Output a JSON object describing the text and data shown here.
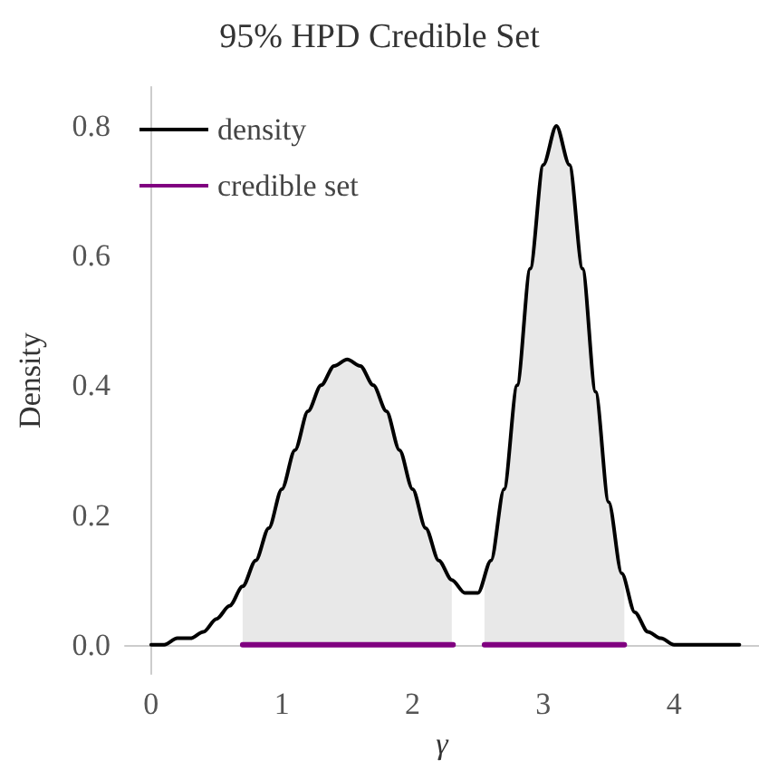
{
  "chart_data": {
    "type": "line",
    "title": "95% HPD Credible Set",
    "xlabel": "γ",
    "ylabel": "Density",
    "xlim": [
      -0.2,
      4.65
    ],
    "ylim": [
      -0.045,
      0.86
    ],
    "xticks": [
      0,
      1,
      2,
      3,
      4
    ],
    "yticks": [
      {
        "value": 0,
        "label": "0.0"
      },
      0.2,
      0.4,
      0.6,
      0.8
    ],
    "grid": false,
    "legend": "top left",
    "line_style": "solid",
    "series": [
      {
        "type": "area",
        "color": "#e8e8e8",
        "x": [
          0.7,
          0.8,
          0.9,
          1.0,
          1.1,
          1.2,
          1.3,
          1.4,
          1.5,
          1.6,
          1.7,
          1.8,
          1.9,
          2.0,
          2.1,
          2.2,
          2.3,
          2.45,
          2.55,
          2.6,
          2.7,
          2.8,
          2.9,
          3.0,
          3.1,
          3.2,
          3.3,
          3.4,
          3.5,
          3.6,
          3.62
        ],
        "values": [
          0.09,
          0.13,
          0.18,
          0.24,
          0.3,
          0.36,
          0.4,
          0.43,
          0.44,
          0.43,
          0.4,
          0.36,
          0.3,
          0.24,
          0.18,
          0.13,
          0.1,
          null,
          0.09,
          0.13,
          0.24,
          0.4,
          0.58,
          0.74,
          0.8,
          0.74,
          0.58,
          0.39,
          0.22,
          0.11,
          0.09
        ]
      },
      {
        "name": "density",
        "color": "#000000",
        "x": [
          0,
          0.1,
          0.2,
          0.3,
          0.4,
          0.5,
          0.6,
          0.7,
          0.8,
          0.9,
          1.0,
          1.1,
          1.2,
          1.3,
          1.4,
          1.5,
          1.6,
          1.7,
          1.8,
          1.9,
          2.0,
          2.1,
          2.2,
          2.3,
          2.4,
          2.5,
          2.6,
          2.7,
          2.8,
          2.9,
          3.0,
          3.1,
          3.2,
          3.3,
          3.4,
          3.5,
          3.6,
          3.7,
          3.8,
          3.9,
          4.0,
          4.1,
          4.2,
          4.3,
          4.4,
          4.5
        ],
        "values": [
          0.0,
          0.0,
          0.01,
          0.01,
          0.02,
          0.04,
          0.06,
          0.09,
          0.13,
          0.18,
          0.24,
          0.3,
          0.36,
          0.4,
          0.43,
          0.44,
          0.43,
          0.4,
          0.36,
          0.3,
          0.24,
          0.18,
          0.13,
          0.1,
          0.08,
          0.08,
          0.13,
          0.24,
          0.4,
          0.58,
          0.74,
          0.8,
          0.74,
          0.58,
          0.39,
          0.22,
          0.11,
          0.05,
          0.02,
          0.01,
          0.0,
          0.0,
          0.0,
          0.0,
          0.0,
          0.0
        ]
      },
      {
        "name": "credible set",
        "color": "#800080",
        "x": [
          0.7,
          2.31,
          2.45,
          2.55,
          3.62
        ],
        "values": [
          0,
          0,
          null,
          0,
          0
        ]
      }
    ]
  }
}
